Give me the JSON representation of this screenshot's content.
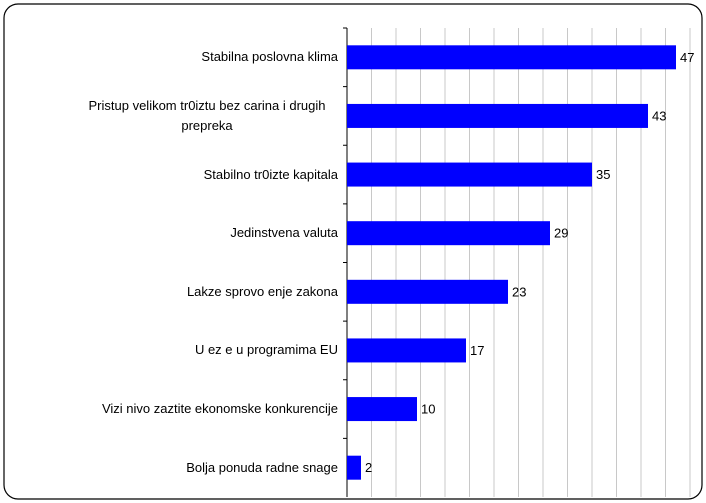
{
  "chart_data": {
    "type": "bar",
    "orientation": "horizontal",
    "categories": [
      "Stabilna poslovna klima",
      "Pristup velikom tr0iztu bez carina i drugih prepreka",
      "Stabilno tr0izte kapitala",
      "Jedinstvena valuta",
      "Lakze sprovo enje zakona",
      "U ez e u programima EU",
      "Vizi nivo zaztite ekonomske konkurencije",
      "Bolja ponuda radne snage"
    ],
    "values": [
      47,
      43,
      35,
      29,
      23,
      17,
      10,
      2
    ],
    "color": "#0000ff",
    "xlim": [
      0,
      49
    ],
    "xticks": [
      0,
      3.5,
      7,
      10.5,
      14,
      17.5,
      21,
      24.5,
      28,
      31.5,
      35,
      38.5,
      42,
      45.5,
      49
    ],
    "grid": true
  }
}
